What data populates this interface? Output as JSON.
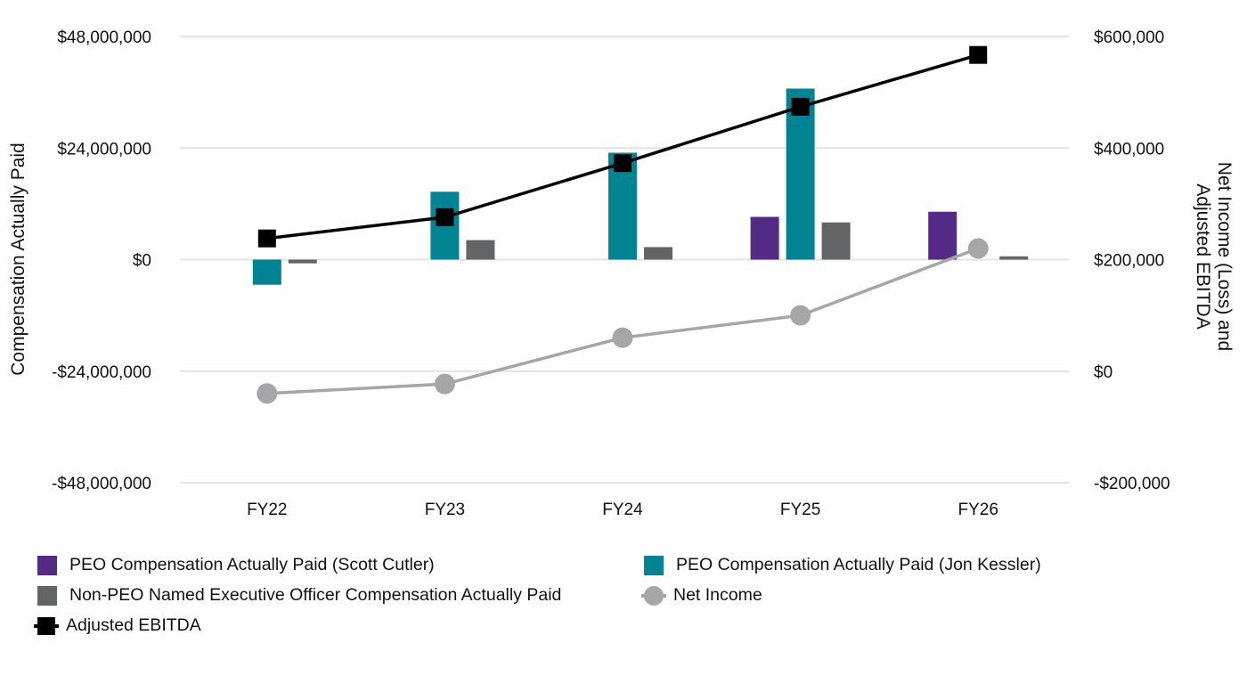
{
  "chart_data": {
    "type": "bar",
    "categories": [
      "FY22",
      "FY23",
      "FY24",
      "FY25",
      "FY26"
    ],
    "left_axis": {
      "label": "Compensation Actually Paid",
      "range": [
        -48000000,
        48000000
      ],
      "ticks": [
        48000000,
        24000000,
        0,
        -24000000,
        -48000000
      ],
      "tick_labels": [
        "$48,000,000",
        "$24,000,000",
        "$0",
        "-$24,000,000",
        "-$48,000,000"
      ]
    },
    "right_axis": {
      "label_line1": "Net Income (Loss) and",
      "label_line2": "Adjusted EBITDA",
      "range": [
        -200000,
        600000
      ],
      "ticks": [
        600000,
        400000,
        200000,
        0,
        -200000
      ],
      "tick_labels": [
        "$600,000",
        "$400,000",
        "$200,000",
        "$0",
        "-$200,000"
      ]
    },
    "grid": true,
    "legend_position": "bottom",
    "bar_series": [
      {
        "name": "PEO Compensation Actually Paid (Scott Cutler)",
        "color": "#542a87",
        "values": [
          null,
          null,
          null,
          9200000,
          10300000
        ]
      },
      {
        "name": "PEO Compensation Actually Paid (Jon Kessler)",
        "color": "#008393",
        "values": [
          -5400000,
          14600000,
          23000000,
          36800000,
          null
        ]
      },
      {
        "name": "Non-PEO Named Executive Officer Compensation Actually Paid",
        "color": "#636466",
        "values": [
          -800000,
          4200000,
          2700000,
          8000000,
          700000
        ]
      }
    ],
    "line_series": [
      {
        "name": "Net Income",
        "color": "#a6a6a8",
        "marker": "circle",
        "values": [
          -40000,
          -23000,
          60000,
          100000,
          220000
        ]
      },
      {
        "name": "Adjusted EBITDA",
        "color": "#000000",
        "marker": "square",
        "values": [
          238000,
          276000,
          373000,
          474000,
          567000
        ]
      }
    ]
  }
}
